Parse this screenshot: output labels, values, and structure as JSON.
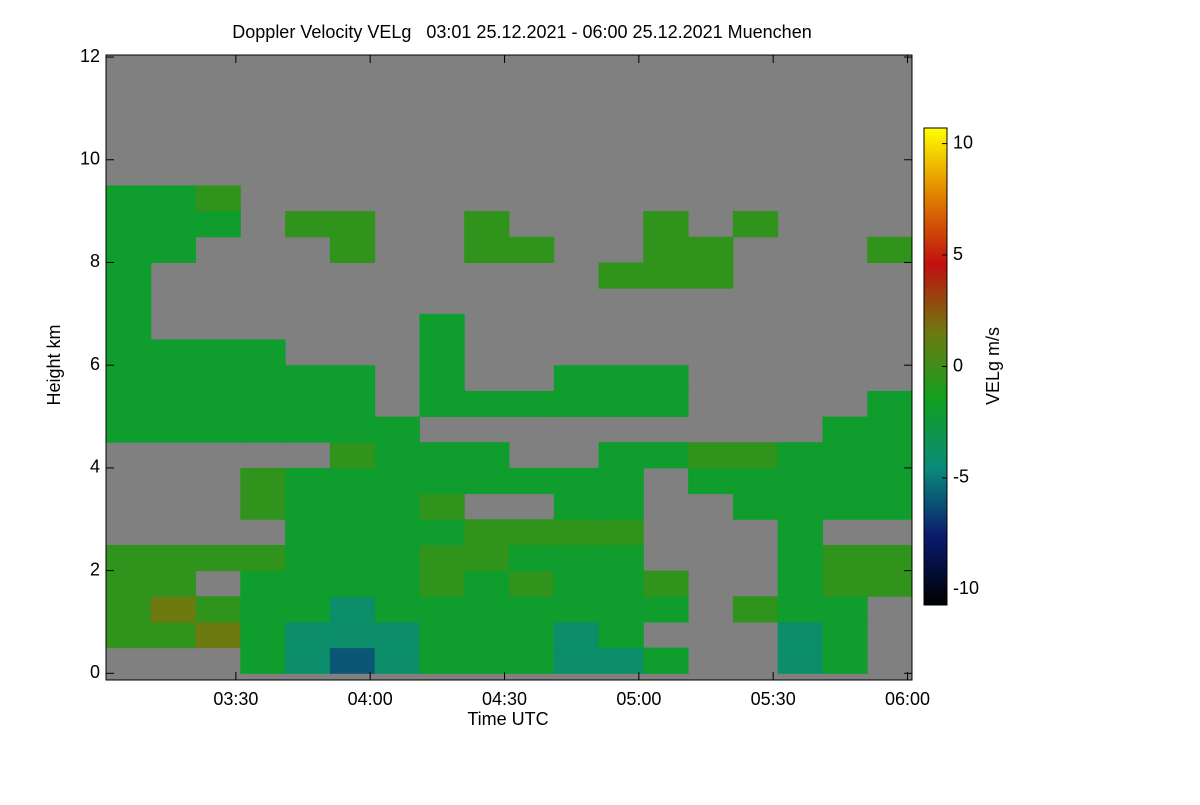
{
  "chart_data": {
    "type": "heatmap",
    "title": "Doppler Velocity VELg   03:01 25.12.2021 - 06:00 25.12.2021 Muenchen",
    "x_label": "Time UTC",
    "y_label": "Height km",
    "colorbar_label": "VELg m/s",
    "xlim": [
      181,
      361
    ],
    "ylim": [
      -0.13,
      12.04
    ],
    "zlim": [
      -10.7,
      10.7
    ],
    "xticks": [
      {
        "value": 210,
        "label": "03:30"
      },
      {
        "value": 240,
        "label": "04:00"
      },
      {
        "value": 270,
        "label": "04:30"
      },
      {
        "value": 300,
        "label": "05:00"
      },
      {
        "value": 330,
        "label": "05:30"
      },
      {
        "value": 360,
        "label": "06:00"
      }
    ],
    "yticks": [
      0,
      2,
      4,
      6,
      8,
      10,
      12
    ],
    "zticks": [
      -10,
      -5,
      0,
      5,
      10
    ],
    "background": "#808080",
    "colormap": [
      "#000000",
      "#0a1a6e",
      "#0a8a7a",
      "#10a020",
      "#6e7a10",
      "#c01010",
      "#e08000",
      "#ffff00"
    ],
    "xbins": [
      181,
      191,
      201,
      211,
      221,
      231,
      241,
      251,
      261,
      271,
      281,
      291,
      301,
      311,
      321,
      331,
      341,
      351,
      361
    ],
    "ybins": [
      0,
      0.5,
      1,
      1.5,
      2,
      2.5,
      3,
      3.5,
      4,
      4.5,
      5,
      5.5,
      6,
      6.5,
      7,
      7.5,
      8,
      8.5,
      9,
      9.5,
      10,
      10.5,
      11,
      11.5,
      12
    ],
    "z": [
      [
        null,
        null,
        null,
        -2,
        -4,
        -6,
        -4,
        -2,
        -2,
        -2,
        -4,
        -4,
        -2,
        null,
        null,
        -4,
        -2,
        null
      ],
      [
        -0.5,
        -0.5,
        1.5,
        -2,
        -4,
        -4,
        -4,
        -2,
        -2,
        -2,
        -4,
        -2,
        null,
        null,
        null,
        -4,
        -2,
        null
      ],
      [
        -0.5,
        1.5,
        -0.5,
        -2,
        -2,
        -4,
        -2,
        -2,
        -2,
        -2,
        -2,
        -2,
        -2,
        null,
        -0.5,
        -2,
        -2,
        null
      ],
      [
        -0.5,
        -0.5,
        null,
        -2,
        -2,
        -2,
        -2,
        -0.5,
        -2,
        -0.5,
        -2,
        -2,
        -0.5,
        null,
        null,
        -2,
        -0.5,
        -0.5
      ],
      [
        -0.5,
        -0.5,
        -0.5,
        -0.5,
        -2,
        -2,
        -2,
        -0.5,
        -0.5,
        -2,
        -2,
        -2,
        null,
        null,
        null,
        -2,
        -0.5,
        -0.5
      ],
      [
        null,
        null,
        null,
        null,
        -2,
        -2,
        -2,
        -2,
        -0.5,
        -0.5,
        -0.5,
        -0.5,
        null,
        null,
        null,
        -2,
        null,
        null
      ],
      [
        null,
        null,
        null,
        -0.5,
        -2,
        -2,
        -2,
        -0.5,
        null,
        null,
        -2,
        -2,
        null,
        null,
        -2,
        -2,
        -2,
        -2
      ],
      [
        null,
        null,
        null,
        -0.5,
        -2,
        -2,
        -2,
        -2,
        -2,
        -2,
        -2,
        -2,
        null,
        -2,
        -2,
        -2,
        -2,
        -2
      ],
      [
        null,
        null,
        null,
        null,
        null,
        -0.5,
        -2,
        -2,
        -2,
        null,
        null,
        -2,
        -2,
        -0.5,
        -0.5,
        -2,
        -2,
        -2
      ],
      [
        -2,
        -2,
        -2,
        -2,
        -2,
        -2,
        -2,
        null,
        null,
        null,
        null,
        null,
        null,
        null,
        null,
        null,
        -2,
        -2
      ],
      [
        -2,
        -2,
        -2,
        -2,
        -2,
        -2,
        null,
        -2,
        -2,
        -2,
        -2,
        -2,
        -2,
        null,
        null,
        null,
        null,
        -2
      ],
      [
        -2,
        -2,
        -2,
        -2,
        -2,
        -2,
        null,
        -2,
        null,
        null,
        -2,
        -2,
        -2,
        null,
        null,
        null,
        null,
        null
      ],
      [
        -2,
        -2,
        -2,
        -2,
        null,
        null,
        null,
        -2,
        null,
        null,
        null,
        null,
        null,
        null,
        null,
        null,
        null,
        null
      ],
      [
        -2,
        null,
        null,
        null,
        null,
        null,
        null,
        -2,
        null,
        null,
        null,
        null,
        null,
        null,
        null,
        null,
        null,
        null
      ],
      [
        -2,
        null,
        null,
        null,
        null,
        null,
        null,
        null,
        null,
        null,
        null,
        null,
        null,
        null,
        null,
        null,
        null,
        null
      ],
      [
        -2,
        null,
        null,
        null,
        null,
        null,
        null,
        null,
        null,
        null,
        null,
        -0.5,
        -0.5,
        -0.5,
        null,
        null,
        null,
        null
      ],
      [
        -2,
        -2,
        null,
        null,
        null,
        -0.5,
        null,
        null,
        -0.5,
        -0.5,
        null,
        null,
        -0.5,
        -0.5,
        null,
        null,
        null,
        -0.5
      ],
      [
        -2,
        -2,
        -2,
        null,
        -0.5,
        -0.5,
        null,
        null,
        -0.5,
        null,
        null,
        null,
        -0.5,
        null,
        -0.5,
        null,
        null,
        null
      ],
      [
        -2,
        -2,
        -0.5,
        null,
        null,
        null,
        null,
        null,
        null,
        null,
        null,
        null,
        null,
        null,
        null,
        null,
        null,
        null
      ],
      [
        null,
        null,
        null,
        null,
        null,
        null,
        null,
        null,
        null,
        null,
        null,
        null,
        null,
        null,
        null,
        null,
        null,
        null
      ],
      [
        null,
        null,
        null,
        null,
        null,
        null,
        null,
        null,
        null,
        null,
        null,
        null,
        null,
        null,
        null,
        null,
        null,
        null
      ],
      [
        null,
        null,
        null,
        null,
        null,
        null,
        null,
        null,
        null,
        null,
        null,
        null,
        null,
        null,
        null,
        null,
        null,
        null
      ],
      [
        null,
        null,
        null,
        null,
        null,
        null,
        null,
        null,
        null,
        null,
        null,
        null,
        null,
        null,
        null,
        null,
        null,
        null
      ],
      [
        null,
        null,
        null,
        null,
        null,
        null,
        null,
        null,
        null,
        null,
        null,
        null,
        null,
        null,
        null,
        null,
        null,
        null
      ]
    ]
  }
}
